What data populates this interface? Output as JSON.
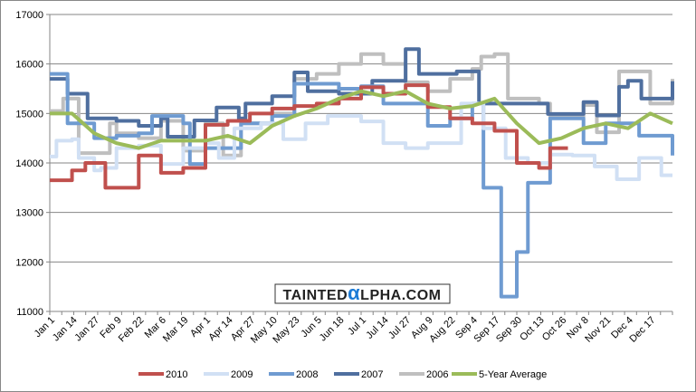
{
  "chart_data": {
    "type": "line",
    "title": "",
    "xlabel": "",
    "ylabel": "",
    "ylim": [
      11000,
      17000
    ],
    "yticks": [
      "11000",
      "12000",
      "13000",
      "14000",
      "15000",
      "16000",
      "17000"
    ],
    "categories": [
      "Jan 1",
      "Jan 14",
      "Jan 27",
      "Feb 9",
      "Feb 22",
      "Mar 6",
      "Mar 19",
      "Apr 1",
      "Apr 14",
      "Apr 27",
      "May 10",
      "May 23",
      "Jun 5",
      "Jun 18",
      "Jul 1",
      "Jul 14",
      "Jul 27",
      "Aug 9",
      "Aug 22",
      "Sep 4",
      "Sep 17",
      "Sep 30",
      "Oct 13",
      "Oct 26",
      "Nov 8",
      "Nov 21",
      "Dec 4",
      "Dec 17"
    ],
    "grid": true,
    "legend": "bottom",
    "x_units": "category index (fractional allowed, 28 = year end)",
    "series": [
      {
        "name": "2006",
        "color": "#bfbfbf",
        "step": true,
        "points": [
          [
            0,
            15050
          ],
          [
            0.6,
            15300
          ],
          [
            1,
            15300
          ],
          [
            1.3,
            14200
          ],
          [
            2.7,
            14800
          ],
          [
            3,
            14600
          ],
          [
            4,
            14500
          ],
          [
            5,
            14850
          ],
          [
            6,
            14250
          ],
          [
            7,
            14800
          ],
          [
            7.8,
            14150
          ],
          [
            8.6,
            14800
          ],
          [
            10,
            15000
          ],
          [
            11,
            15700
          ],
          [
            12,
            15800
          ],
          [
            13,
            16000
          ],
          [
            14,
            16200
          ],
          [
            15,
            16000
          ],
          [
            16,
            15630
          ],
          [
            17,
            15450
          ],
          [
            18,
            15700
          ],
          [
            19,
            15900
          ],
          [
            19.4,
            16150
          ],
          [
            20,
            16200
          ],
          [
            20.6,
            15300
          ],
          [
            22,
            15200
          ],
          [
            22.5,
            14930
          ],
          [
            24,
            15170
          ],
          [
            24.6,
            14620
          ],
          [
            25.6,
            15850
          ],
          [
            27,
            15200
          ],
          [
            28,
            15700
          ]
        ]
      },
      {
        "name": "2007",
        "color": "#4f6f9f",
        "step": true,
        "points": [
          [
            0,
            15700
          ],
          [
            0.8,
            15400
          ],
          [
            1.7,
            14900
          ],
          [
            3,
            14850
          ],
          [
            4,
            14750
          ],
          [
            5,
            14900
          ],
          [
            5.3,
            14530
          ],
          [
            6.5,
            14860
          ],
          [
            7.5,
            15120
          ],
          [
            8.5,
            14900
          ],
          [
            8.8,
            15200
          ],
          [
            10,
            15350
          ],
          [
            11,
            15830
          ],
          [
            11.6,
            15450
          ],
          [
            13,
            15400
          ],
          [
            14.5,
            15660
          ],
          [
            16,
            16300
          ],
          [
            16.6,
            15800
          ],
          [
            18.3,
            15850
          ],
          [
            19.3,
            15200
          ],
          [
            21,
            15200
          ],
          [
            22.4,
            14990
          ],
          [
            24,
            15230
          ],
          [
            24.6,
            14960
          ],
          [
            25.6,
            15540
          ],
          [
            26,
            15660
          ],
          [
            26.6,
            15300
          ],
          [
            27.5,
            15300
          ],
          [
            28,
            15650
          ]
        ]
      },
      {
        "name": "2008",
        "color": "#6f9bd1",
        "step": true,
        "points": [
          [
            0,
            15800
          ],
          [
            0.8,
            15800
          ],
          [
            0.8,
            14800
          ],
          [
            2,
            14500
          ],
          [
            3,
            14550
          ],
          [
            4,
            14600
          ],
          [
            4.6,
            14950
          ],
          [
            6,
            14800
          ],
          [
            6.3,
            13980
          ],
          [
            7,
            14300
          ],
          [
            8,
            14300
          ],
          [
            8.6,
            14800
          ],
          [
            10,
            14950
          ],
          [
            11,
            15600
          ],
          [
            12,
            15600
          ],
          [
            13,
            15500
          ],
          [
            14,
            15550
          ],
          [
            15,
            15200
          ],
          [
            16,
            15200
          ],
          [
            17,
            14750
          ],
          [
            18,
            14900
          ],
          [
            19,
            15200
          ],
          [
            19.5,
            13500
          ],
          [
            20.3,
            11300
          ],
          [
            21,
            12200
          ],
          [
            21.5,
            13600
          ],
          [
            22.5,
            14900
          ],
          [
            24,
            14400
          ],
          [
            25,
            14800
          ],
          [
            26.5,
            14550
          ],
          [
            28,
            14150
          ]
        ]
      },
      {
        "name": "2009",
        "color": "#d1e0f4",
        "step": true,
        "points": [
          [
            0,
            14130
          ],
          [
            0.3,
            14450
          ],
          [
            1,
            14480
          ],
          [
            1.3,
            14100
          ],
          [
            2,
            13850
          ],
          [
            2.3,
            13900
          ],
          [
            3,
            14300
          ],
          [
            4,
            14350
          ],
          [
            5,
            13980
          ],
          [
            6,
            14300
          ],
          [
            7,
            14400
          ],
          [
            7.6,
            14100
          ],
          [
            8.3,
            14700
          ],
          [
            9.5,
            14800
          ],
          [
            10.5,
            14480
          ],
          [
            11.5,
            14800
          ],
          [
            12.5,
            14950
          ],
          [
            14,
            14840
          ],
          [
            15,
            14400
          ],
          [
            16,
            14300
          ],
          [
            17,
            14400
          ],
          [
            18.5,
            15200
          ],
          [
            19.5,
            14700
          ],
          [
            20.5,
            14100
          ],
          [
            21.5,
            14000
          ],
          [
            22.5,
            14170
          ],
          [
            23.5,
            14150
          ],
          [
            24.5,
            13930
          ],
          [
            25.5,
            13670
          ],
          [
            26.5,
            14100
          ],
          [
            27.5,
            13750
          ],
          [
            28,
            13750
          ]
        ]
      },
      {
        "name": "2010",
        "color": "#c0504d",
        "step": true,
        "points": [
          [
            0,
            13650
          ],
          [
            1,
            13850
          ],
          [
            1.6,
            14000
          ],
          [
            2.5,
            13500
          ],
          [
            4,
            14150
          ],
          [
            5,
            13800
          ],
          [
            6,
            13900
          ],
          [
            7,
            14770
          ],
          [
            8,
            14850
          ],
          [
            9,
            15000
          ],
          [
            10,
            15100
          ],
          [
            11,
            15150
          ],
          [
            12,
            15200
          ],
          [
            13,
            15300
          ],
          [
            14,
            15530
          ],
          [
            15,
            15400
          ],
          [
            16,
            15570
          ],
          [
            17,
            15130
          ],
          [
            18,
            14900
          ],
          [
            19,
            14800
          ],
          [
            20,
            14650
          ],
          [
            21,
            14000
          ],
          [
            22,
            13900
          ],
          [
            22.5,
            14300
          ],
          [
            23.3,
            14300
          ]
        ]
      },
      {
        "name": "5-Year Average",
        "color": "#9bbb59",
        "step": false,
        "points": [
          [
            0,
            15000
          ],
          [
            1,
            15000
          ],
          [
            2,
            14600
          ],
          [
            3,
            14400
          ],
          [
            4,
            14300
          ],
          [
            5,
            14450
          ],
          [
            6,
            14450
          ],
          [
            7,
            14450
          ],
          [
            8,
            14550
          ],
          [
            9,
            14400
          ],
          [
            10,
            14750
          ],
          [
            11,
            14950
          ],
          [
            12,
            15100
          ],
          [
            13,
            15300
          ],
          [
            14,
            15450
          ],
          [
            15,
            15350
          ],
          [
            16,
            15450
          ],
          [
            17,
            15200
          ],
          [
            18,
            15100
          ],
          [
            19,
            15150
          ],
          [
            20,
            15300
          ],
          [
            21,
            14800
          ],
          [
            22,
            14400
          ],
          [
            23,
            14500
          ],
          [
            24,
            14700
          ],
          [
            25,
            14800
          ],
          [
            26,
            14700
          ],
          [
            27,
            15000
          ],
          [
            28,
            14800
          ]
        ]
      }
    ],
    "legend_order": [
      "2010",
      "2009",
      "2008",
      "2007",
      "2006",
      "5-Year Average"
    ],
    "watermark": "TAINTEDαLPHA.COM"
  }
}
